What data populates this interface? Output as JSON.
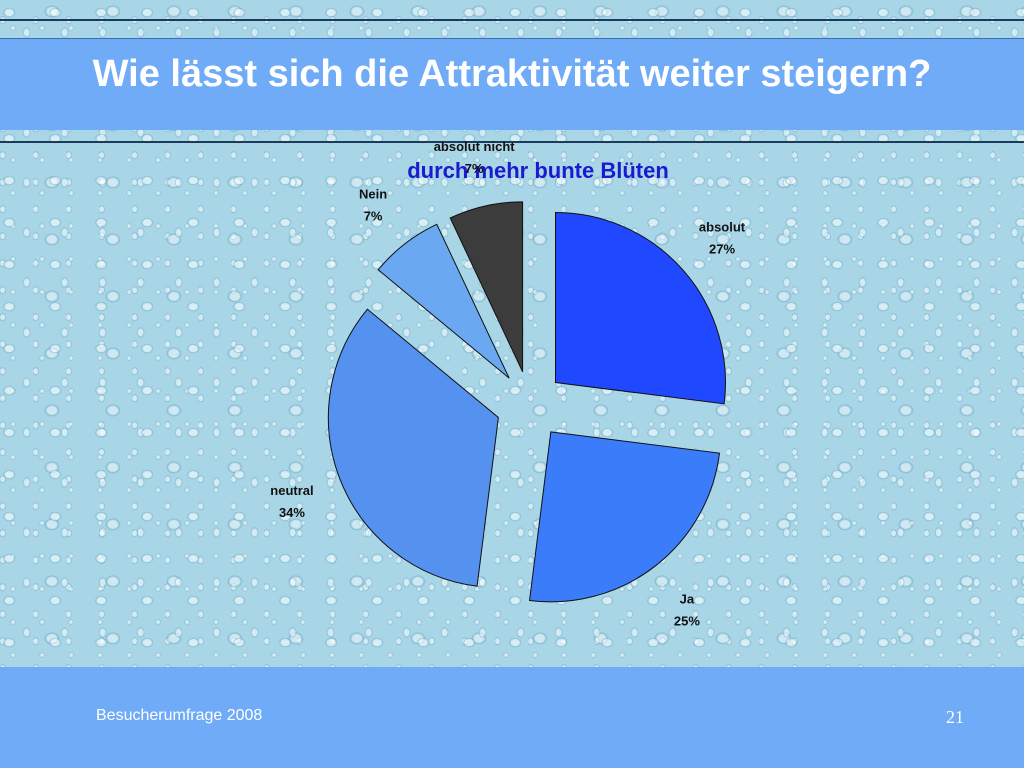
{
  "slide": {
    "title": "Wie lässt sich die Attraktivität weiter steigern?",
    "footer_text": "Besucherumfrage 2008",
    "page_number": "21"
  },
  "chart_data": {
    "type": "pie",
    "title": "durch mehr bunte Blüten",
    "exploded": true,
    "slices": [
      {
        "label": "absolut",
        "value": 27,
        "value_label": "27%",
        "color": "#2048ff"
      },
      {
        "label": "Ja",
        "value": 25,
        "value_label": "25%",
        "color": "#3a7cfa"
      },
      {
        "label": "neutral",
        "value": 34,
        "value_label": "34%",
        "color": "#5592f0"
      },
      {
        "label": "Nein",
        "value": 7,
        "value_label": "7%",
        "color": "#6aa8f2"
      },
      {
        "label": "absolut nicht",
        "value": 7,
        "value_label": "7%",
        "color": "#3c3c3c"
      }
    ]
  }
}
